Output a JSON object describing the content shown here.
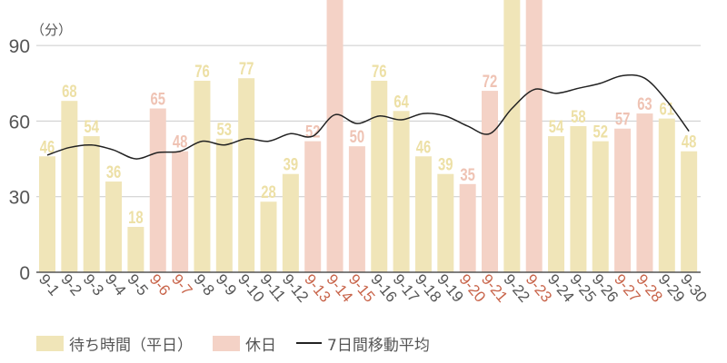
{
  "chart_data": {
    "type": "bar",
    "title": "",
    "ylabel": "（分）",
    "xlabel": "",
    "ylim": [
      0,
      100
    ],
    "yticks": [
      0,
      30,
      60,
      90
    ],
    "grid": true,
    "legend_position": "bottom",
    "categories": [
      "9-1",
      "9-2",
      "9-3",
      "9-4",
      "9-5",
      "9-6",
      "9-7",
      "9-8",
      "9-9",
      "9-10",
      "9-11",
      "9-12",
      "9-13",
      "9-14",
      "9-15",
      "9-16",
      "9-17",
      "9-18",
      "9-19",
      "9-20",
      "9-21",
      "9-22",
      "9-23",
      "9-24",
      "9-25",
      "9-26",
      "9-27",
      "9-28",
      "9-29",
      "9-30"
    ],
    "holiday": [
      false,
      false,
      false,
      false,
      false,
      true,
      true,
      false,
      false,
      false,
      false,
      false,
      true,
      true,
      true,
      false,
      false,
      false,
      false,
      true,
      true,
      false,
      true,
      false,
      false,
      false,
      true,
      true,
      false,
      false
    ],
    "series": [
      {
        "name": "待ち時間（平日）/ 休日",
        "type": "bar",
        "values": [
          46,
          68,
          54,
          36,
          18,
          65,
          48,
          76,
          53,
          77,
          28,
          39,
          52,
          null,
          50,
          76,
          64,
          46,
          39,
          35,
          72,
          null,
          null,
          54,
          58,
          52,
          57,
          63,
          61,
          48
        ],
        "labels": [
          "46",
          "68",
          "54",
          "36",
          "18",
          "65",
          "48",
          "76",
          "53",
          "77",
          "28",
          "39",
          "52",
          "",
          "50",
          "76",
          "64",
          "46",
          "39",
          "35",
          "72",
          "",
          "",
          "54",
          "58",
          "52",
          "57",
          "63",
          "61",
          "48"
        ],
        "overflow": [
          false,
          false,
          false,
          false,
          false,
          false,
          false,
          false,
          false,
          false,
          false,
          false,
          false,
          true,
          false,
          false,
          false,
          false,
          false,
          false,
          false,
          true,
          true,
          false,
          false,
          false,
          false,
          false,
          false,
          false
        ]
      },
      {
        "name": "7日間移動平均",
        "type": "line",
        "values": [
          46.5,
          49.5,
          50.5,
          48.5,
          45,
          47.5,
          48,
          52,
          50.5,
          53,
          52,
          55,
          54,
          62.5,
          59,
          62,
          60.5,
          63,
          62,
          58,
          55,
          65,
          72.5,
          71,
          73,
          75,
          78,
          77,
          68,
          56
        ]
      }
    ]
  },
  "colors": {
    "weekday_bar": "#f0e5b8",
    "holiday_bar": "#f4d2c6",
    "weekday_label": "#ede0a6",
    "holiday_label": "#efc3b4",
    "weekday_tick": "#555555",
    "holiday_tick": "#c8644a",
    "line": "#222222",
    "grid": "#cccccc",
    "axis": "#555555"
  },
  "legend": {
    "weekday": "待ち時間（平日）",
    "holiday": "休日",
    "moving_average": "7日間移動平均"
  }
}
